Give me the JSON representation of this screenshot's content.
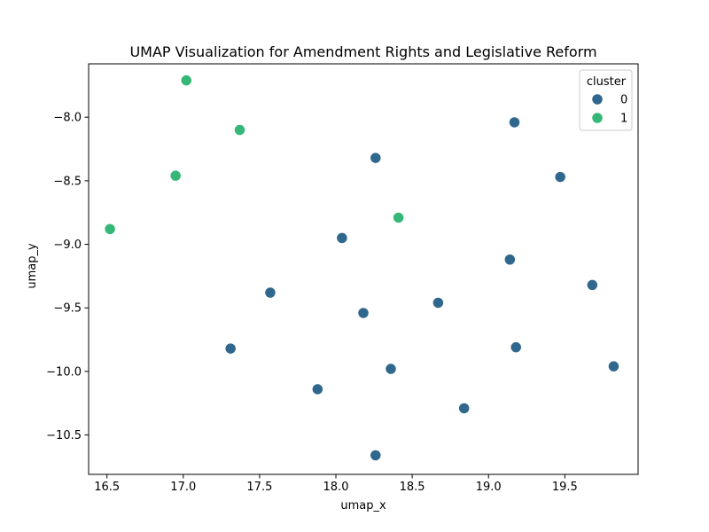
{
  "colors": {
    "cluster_0": "#30678d",
    "cluster_1": "#35b778",
    "point_stroke": "#ffffff",
    "axis": "#000000",
    "legend_border": "#cccccc"
  },
  "chart_data": {
    "type": "scatter",
    "title": "UMAP Visualization for Amendment Rights and Legislative Reform",
    "xlabel": "umap_x",
    "ylabel": "umap_y",
    "xlim": [
      16.38,
      19.98
    ],
    "ylim": [
      -10.81,
      -7.58
    ],
    "xticks": [
      16.5,
      17.0,
      17.5,
      18.0,
      18.5,
      19.0,
      19.5
    ],
    "xtick_labels": [
      "16.5",
      "17.0",
      "17.5",
      "18.0",
      "18.5",
      "19.0",
      "19.5"
    ],
    "yticks": [
      -8.0,
      -8.5,
      -9.0,
      -9.5,
      -10.0,
      -10.5
    ],
    "ytick_labels": [
      "−8.0",
      "−8.5",
      "−9.0",
      "−9.5",
      "−10.0",
      "−10.5"
    ],
    "grid": false,
    "legend": {
      "title": "cluster",
      "placement": "top-right",
      "entries": [
        "0",
        "1"
      ]
    },
    "series": [
      {
        "name": "0",
        "color": "#30678d",
        "points": [
          {
            "x": 19.17,
            "y": -8.04
          },
          {
            "x": 18.26,
            "y": -8.32
          },
          {
            "x": 19.47,
            "y": -8.47
          },
          {
            "x": 18.04,
            "y": -8.95
          },
          {
            "x": 19.14,
            "y": -9.12
          },
          {
            "x": 19.68,
            "y": -9.32
          },
          {
            "x": 17.57,
            "y": -9.38
          },
          {
            "x": 18.67,
            "y": -9.46
          },
          {
            "x": 18.18,
            "y": -9.54
          },
          {
            "x": 17.31,
            "y": -9.82
          },
          {
            "x": 19.18,
            "y": -9.81
          },
          {
            "x": 18.36,
            "y": -9.98
          },
          {
            "x": 19.82,
            "y": -9.96
          },
          {
            "x": 17.88,
            "y": -10.14
          },
          {
            "x": 18.84,
            "y": -10.29
          },
          {
            "x": 18.26,
            "y": -10.66
          }
        ]
      },
      {
        "name": "1",
        "color": "#35b778",
        "points": [
          {
            "x": 17.02,
            "y": -7.71
          },
          {
            "x": 17.37,
            "y": -8.1
          },
          {
            "x": 16.95,
            "y": -8.46
          },
          {
            "x": 18.41,
            "y": -8.79
          },
          {
            "x": 16.52,
            "y": -8.88
          }
        ]
      }
    ]
  }
}
